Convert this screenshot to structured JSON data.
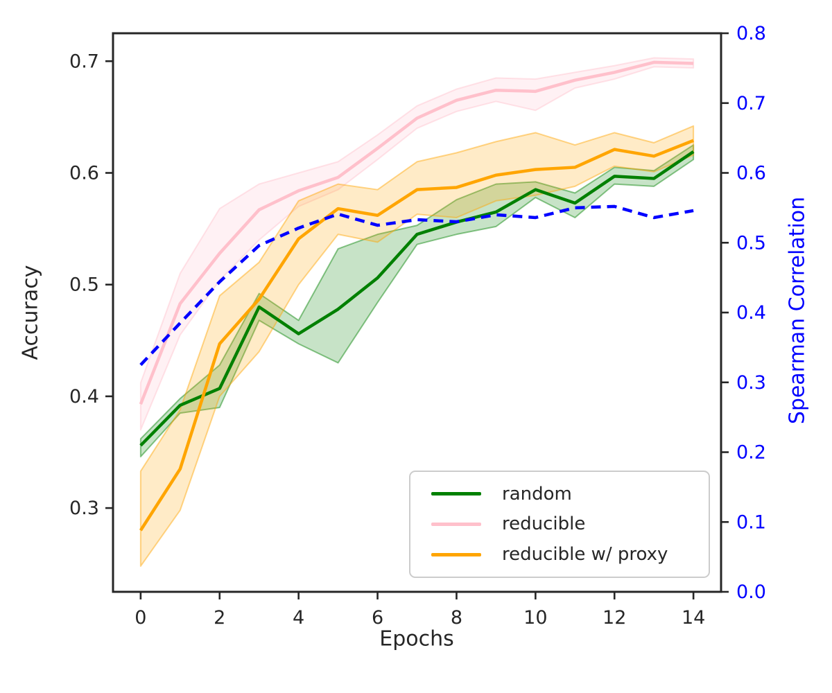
{
  "figure": {
    "background": "#ffffff",
    "text_color": "#262626",
    "spine_color": "#262626"
  },
  "chart_data": {
    "type": "line",
    "title": "",
    "xlabel": "Epochs",
    "x": [
      0,
      1,
      2,
      3,
      4,
      5,
      6,
      7,
      8,
      9,
      10,
      11,
      12,
      13,
      14
    ],
    "x_axis": {
      "tick_values": [
        0,
        2,
        4,
        6,
        8,
        10,
        12,
        14
      ],
      "tick_labels": [
        "0",
        "2",
        "4",
        "6",
        "8",
        "10",
        "12",
        "14"
      ],
      "range": [
        -0.7,
        14.7
      ]
    },
    "left_axis": {
      "label": "Accuracy",
      "color": "#262626",
      "tick_values": [
        0.7,
        0.6,
        0.5,
        0.4,
        0.3
      ],
      "tick_labels": [
        "0.7",
        "0.6",
        "0.5",
        "0.4",
        "0.3"
      ],
      "range": [
        0.225,
        0.725
      ]
    },
    "right_axis": {
      "label": "Spearman Correlation",
      "color": "#0000ff",
      "tick_values": [
        0.8,
        0.7,
        0.6,
        0.5,
        0.4,
        0.3,
        0.2,
        0.1,
        0.0
      ],
      "tick_labels": [
        "0.8",
        "0.7",
        "0.6",
        "0.5",
        "0.4",
        "0.3",
        "0.2",
        "0.1",
        "0.0"
      ],
      "range": [
        0.0,
        0.8
      ]
    },
    "grid": false,
    "legend": {
      "position": "lower right",
      "entries": [
        "random",
        "reducible",
        "reducible w/ proxy"
      ]
    },
    "series": [
      {
        "name": "random",
        "axis": "left",
        "color": "#008000",
        "style": "solid",
        "band": true,
        "values": [
          0.356,
          0.392,
          0.407,
          0.48,
          0.456,
          0.478,
          0.506,
          0.545,
          0.556,
          0.565,
          0.585,
          0.573,
          0.597,
          0.595,
          0.619
        ],
        "band_low": [
          0.346,
          0.385,
          0.39,
          0.468,
          0.447,
          0.43,
          0.484,
          0.536,
          0.545,
          0.552,
          0.578,
          0.56,
          0.59,
          0.588,
          0.612
        ],
        "band_high": [
          0.362,
          0.398,
          0.428,
          0.492,
          0.468,
          0.532,
          0.545,
          0.553,
          0.576,
          0.59,
          0.592,
          0.582,
          0.605,
          0.602,
          0.625
        ]
      },
      {
        "name": "reducible",
        "axis": "left",
        "color": "#ffc0cb",
        "style": "solid",
        "band": true,
        "values": [
          0.393,
          0.483,
          0.528,
          0.567,
          0.584,
          0.596,
          0.622,
          0.649,
          0.665,
          0.674,
          0.673,
          0.683,
          0.69,
          0.699,
          0.698
        ],
        "band_low": [
          0.37,
          0.455,
          0.504,
          0.54,
          0.57,
          0.585,
          0.612,
          0.64,
          0.655,
          0.664,
          0.656,
          0.676,
          0.684,
          0.695,
          0.694
        ],
        "band_high": [
          0.412,
          0.51,
          0.568,
          0.59,
          0.6,
          0.61,
          0.634,
          0.66,
          0.675,
          0.685,
          0.684,
          0.69,
          0.696,
          0.703,
          0.702
        ]
      },
      {
        "name": "reducible w/ proxy",
        "axis": "left",
        "color": "#ffa500",
        "style": "solid",
        "band": true,
        "values": [
          0.28,
          0.335,
          0.447,
          0.487,
          0.541,
          0.568,
          0.562,
          0.585,
          0.587,
          0.598,
          0.603,
          0.605,
          0.621,
          0.615,
          0.629
        ],
        "band_low": [
          0.248,
          0.298,
          0.4,
          0.44,
          0.5,
          0.545,
          0.538,
          0.563,
          0.56,
          0.575,
          0.58,
          0.588,
          0.606,
          0.601,
          0.616
        ],
        "band_high": [
          0.333,
          0.388,
          0.49,
          0.52,
          0.575,
          0.59,
          0.585,
          0.61,
          0.618,
          0.628,
          0.636,
          0.625,
          0.636,
          0.627,
          0.642
        ]
      },
      {
        "name": "spearman correlation",
        "axis": "right",
        "color": "#0000ff",
        "style": "dashed",
        "band": false,
        "values": [
          0.325,
          0.385,
          0.444,
          0.496,
          0.521,
          0.541,
          0.525,
          0.533,
          0.53,
          0.54,
          0.536,
          0.55,
          0.552,
          0.536,
          0.546
        ]
      }
    ]
  }
}
